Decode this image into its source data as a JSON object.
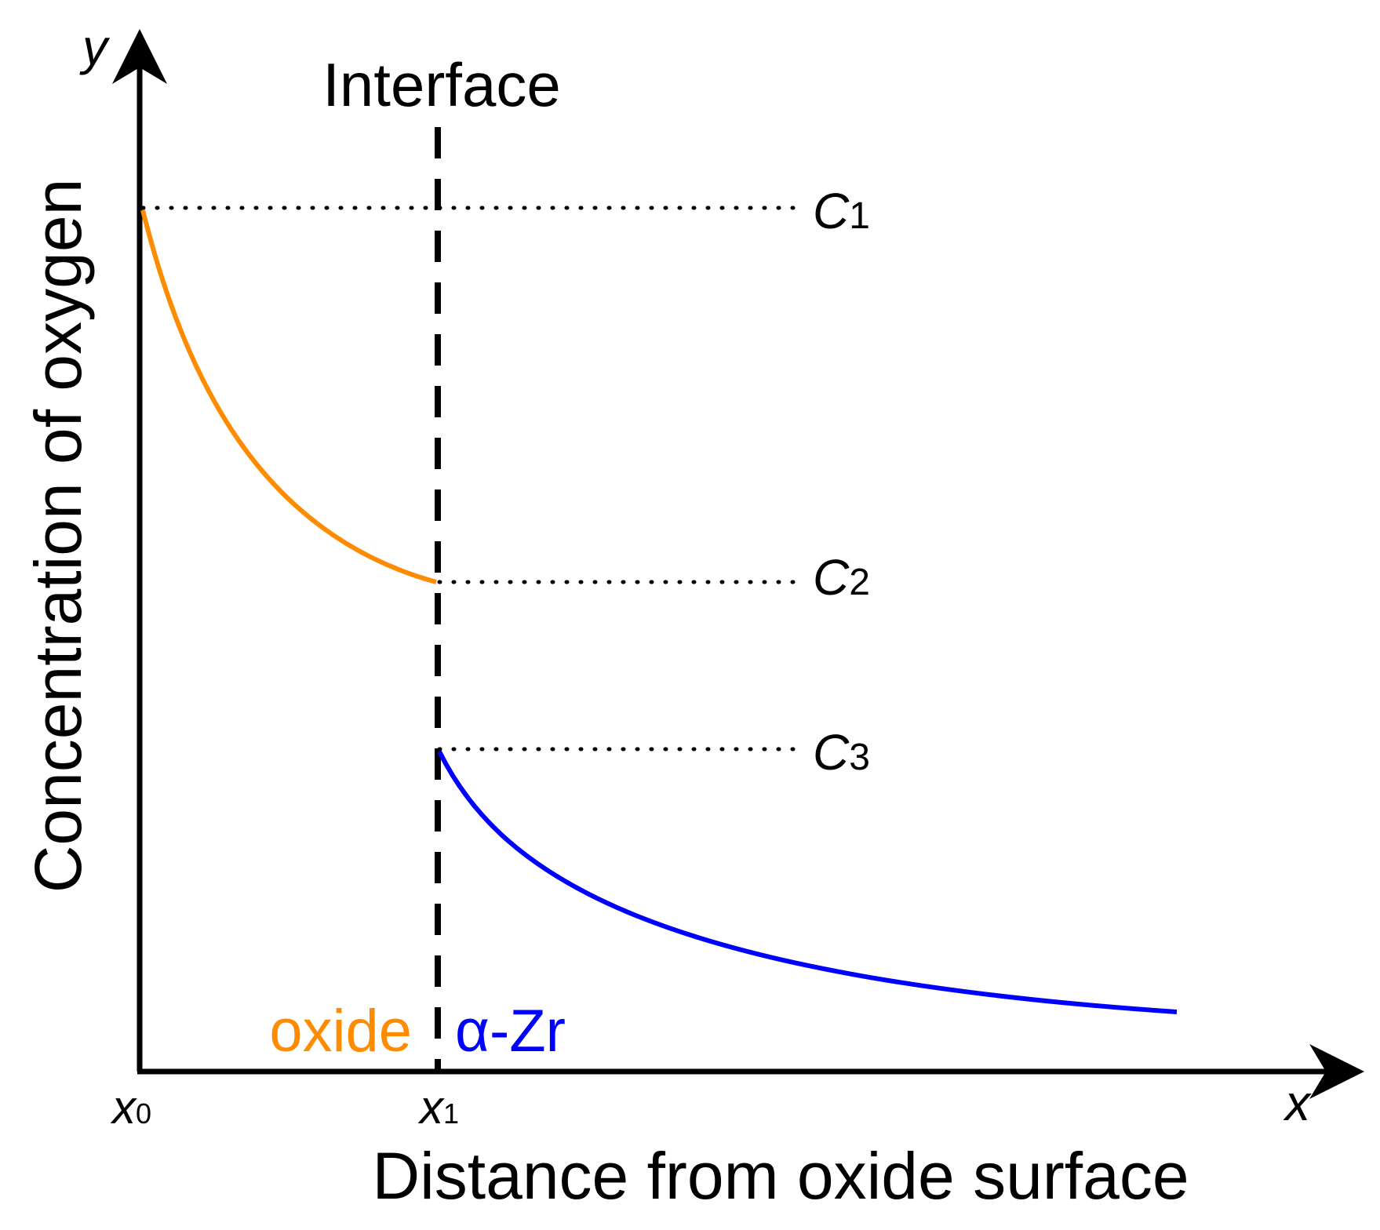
{
  "title": "Interface",
  "axes": {
    "x_symbol": "x",
    "y_symbol": "y",
    "x_label": "Distance from oxide surface",
    "y_label": "Concentration of oxygen"
  },
  "positions": {
    "x0": {
      "base": "x",
      "sub": "0"
    },
    "x1": {
      "base": "x",
      "sub": "1"
    }
  },
  "levels": {
    "c1": {
      "base": "C",
      "sub": "1"
    },
    "c2": {
      "base": "C",
      "sub": "2"
    },
    "c3": {
      "base": "C",
      "sub": "3"
    }
  },
  "regions": {
    "oxide": "oxide",
    "alpha_zr": "α-Zr"
  },
  "colors": {
    "oxide": "#ff8c00",
    "alpha_zr": "#0000ff",
    "axis": "#000000",
    "guide": "#000000"
  }
}
